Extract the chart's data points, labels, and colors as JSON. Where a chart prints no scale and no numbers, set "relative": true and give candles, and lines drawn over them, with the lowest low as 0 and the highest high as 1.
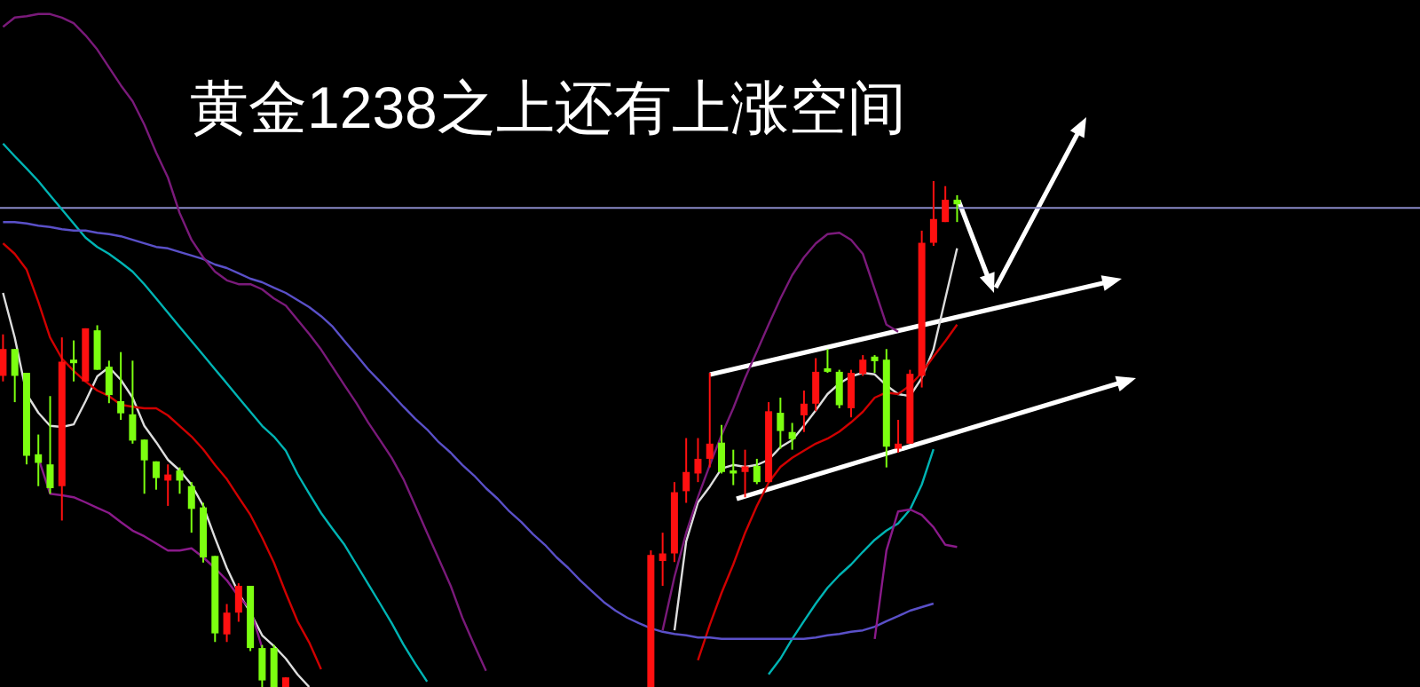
{
  "chart_data": {
    "type": "candlestick",
    "title": "黄金1238之上还有上涨空间",
    "relative": true,
    "categories": [
      null,
      null,
      null,
      null,
      null,
      null,
      null,
      null,
      null,
      null,
      null,
      null,
      null,
      null,
      null,
      null,
      null,
      null,
      null,
      null,
      null,
      null,
      null,
      null,
      null,
      null,
      null,
      null,
      null,
      null,
      null,
      null,
      null,
      null,
      null,
      null,
      null,
      null,
      null,
      null,
      null,
      null,
      null,
      null,
      null,
      null,
      null,
      null,
      null,
      null,
      null,
      null,
      null,
      null,
      null,
      null,
      null,
      null,
      null,
      null,
      null,
      null,
      null,
      null,
      null,
      null,
      null,
      null,
      null,
      null,
      null,
      null,
      null,
      null,
      null,
      null,
      null,
      null,
      null,
      null,
      null,
      null
    ],
    "ohlc": [
      [
        0.615,
        0.697,
        0.604,
        0.668
      ],
      [
        0.668,
        0.668,
        0.563,
        0.615
      ],
      [
        0.621,
        0.621,
        0.44,
        0.457
      ],
      [
        0.46,
        0.499,
        0.397,
        0.443
      ],
      [
        0.44,
        0.575,
        0.382,
        0.393
      ],
      [
        0.397,
        0.691,
        0.329,
        0.643
      ],
      [
        0.647,
        0.685,
        0.604,
        0.64
      ],
      [
        0.604,
        0.709,
        0.604,
        0.709
      ],
      [
        0.705,
        0.715,
        0.627,
        0.627
      ],
      [
        0.633,
        0.645,
        0.561,
        0.577
      ],
      [
        0.565,
        0.662,
        0.528,
        0.541
      ],
      [
        0.539,
        0.645,
        0.481,
        0.487
      ],
      [
        0.489,
        0.489,
        0.382,
        0.448
      ],
      [
        0.446,
        0.446,
        0.39,
        0.413
      ],
      [
        0.408,
        0.44,
        0.358,
        0.42
      ],
      [
        0.428,
        0.434,
        0.382,
        0.408
      ],
      [
        0.397,
        0.405,
        0.305,
        0.352
      ],
      [
        0.355,
        0.364,
        0.246,
        0.256
      ],
      [
        0.259,
        0.259,
        0.089,
        0.106
      ],
      [
        0.104,
        0.164,
        0.089,
        0.147
      ],
      [
        0.147,
        0.205,
        0.129,
        0.2
      ],
      [
        0.2,
        0.2,
        0.071,
        0.077
      ],
      [
        0.077,
        0.083,
        0,
        0.013
      ],
      [
        0.077,
        0.083,
        0,
        0
      ],
      [
        0,
        0.019,
        0,
        0.019
      ],
      null,
      null,
      null,
      null,
      null,
      null,
      null,
      null,
      null,
      null,
      null,
      null,
      null,
      null,
      null,
      null,
      null,
      null,
      null,
      null,
      null,
      null,
      null,
      null,
      null,
      null,
      null,
      null,
      null,
      null,
      [
        0,
        0.27,
        0,
        0.261
      ],
      [
        0.249,
        0.305,
        0.2,
        0.264
      ],
      [
        0.264,
        0.405,
        0.247,
        0.385
      ],
      [
        0.387,
        0.492,
        0.364,
        0.425
      ],
      [
        0.422,
        0.492,
        0.405,
        0.451
      ],
      [
        0.451,
        0.621,
        0.434,
        0.481
      ],
      [
        0.483,
        0.518,
        0.422,
        0.425
      ],
      [
        0.428,
        0.469,
        0.399,
        0.422
      ],
      [
        0.425,
        0.469,
        0.375,
        0.436
      ],
      [
        0.437,
        0.451,
        0.401,
        0.405
      ],
      [
        0.405,
        0.563,
        0.405,
        0.545
      ],
      [
        0.542,
        0.572,
        0.471,
        0.506
      ],
      [
        0.504,
        0.522,
        0.469,
        0.49
      ],
      [
        0.537,
        0.586,
        0.504,
        0.56
      ],
      [
        0.56,
        0.65,
        0.545,
        0.623
      ],
      [
        0.63,
        0.668,
        0.621,
        0.623
      ],
      [
        0.623,
        0.627,
        0.551,
        0.557
      ],
      [
        0.551,
        0.627,
        0.533,
        0.621
      ],
      [
        0.619,
        0.656,
        0.615,
        0.647
      ],
      [
        0.653,
        0.656,
        0.621,
        0.644
      ],
      [
        0.647,
        0.668,
        0.434,
        0.475
      ],
      [
        0.471,
        0.528,
        0.463,
        0.481
      ],
      [
        0.481,
        0.627,
        0.481,
        0.619
      ],
      [
        0.615,
        0.902,
        0.592,
        0.878
      ],
      [
        0.878,
        1.0,
        0.872,
        0.925
      ],
      [
        0.919,
        0.99,
        0.919,
        0.963
      ],
      [
        0.963,
        0.972,
        0.919,
        0.954
      ]
    ],
    "series": [
      {
        "type": "line",
        "color": "#dddddd",
        "values": [
          0.779,
          0.691,
          0.579,
          0.542,
          0.516,
          0.514,
          0.519,
          0.565,
          0.614,
          0.632,
          0.607,
          0.572,
          0.516,
          0.484,
          0.449,
          0.428,
          0.4,
          0.358,
          0.295,
          0.235,
          0.186,
          0.147,
          0.102,
          0.081,
          0.056,
          0.025,
          0,
          null,
          null,
          null,
          null,
          null,
          null,
          null,
          null,
          null,
          null,
          null,
          null,
          null,
          null,
          null,
          null,
          null,
          null,
          null,
          null,
          null,
          null,
          null,
          null,
          null,
          null,
          null,
          null,
          null,
          null,
          0.112,
          0.288,
          0.365,
          0.396,
          0.432,
          0.439,
          0.435,
          0.439,
          0.449,
          0.474,
          0.488,
          0.516,
          0.547,
          0.579,
          0.6,
          0.614,
          0.621,
          0.618,
          0.596,
          0.579,
          0.575,
          0.611,
          0.667,
          0.768,
          0.867
        ]
      },
      {
        "type": "line",
        "color": "#d00000",
        "values": [
          0.877,
          0.856,
          0.825,
          0.761,
          0.691,
          0.649,
          0.625,
          0.604,
          0.586,
          0.575,
          0.558,
          0.554,
          0.551,
          0.551,
          0.537,
          0.516,
          0.495,
          0.47,
          0.439,
          0.411,
          0.375,
          0.34,
          0.295,
          0.246,
          0.186,
          0.13,
          0.088,
          0.035,
          null,
          null,
          null,
          null,
          null,
          null,
          null,
          null,
          null,
          null,
          null,
          null,
          null,
          null,
          null,
          null,
          null,
          null,
          null,
          null,
          null,
          null,
          null,
          null,
          null,
          null,
          null,
          null,
          null,
          null,
          null,
          0.053,
          0.123,
          0.186,
          0.242,
          0.305,
          0.358,
          0.404,
          0.435,
          0.453,
          0.467,
          0.481,
          0.491,
          0.505,
          0.523,
          0.544,
          0.572,
          0.582,
          0.579,
          0.596,
          0.621,
          0.653,
          0.684,
          0.716
        ]
      },
      {
        "type": "line",
        "color": "#00b4b4",
        "values": [
          1.074,
          1.049,
          1.025,
          1.0,
          0.972,
          0.944,
          0.916,
          0.888,
          0.87,
          0.856,
          0.839,
          0.821,
          0.796,
          0.768,
          0.74,
          0.712,
          0.684,
          0.656,
          0.628,
          0.6,
          0.572,
          0.544,
          0.516,
          0.495,
          0.467,
          0.421,
          0.382,
          0.344,
          0.312,
          0.281,
          0.242,
          0.204,
          0.165,
          0.126,
          0.084,
          0.046,
          0.011,
          null,
          null,
          null,
          null,
          null,
          null,
          null,
          null,
          null,
          null,
          null,
          null,
          null,
          null,
          null,
          null,
          null,
          null,
          null,
          null,
          null,
          null,
          null,
          null,
          null,
          null,
          null,
          null,
          0.025,
          0.056,
          0.095,
          0.13,
          0.165,
          0.196,
          0.221,
          0.242,
          0.267,
          0.291,
          0.309,
          0.323,
          0.351,
          0.4,
          0.47,
          null,
          null
        ]
      },
      {
        "type": "line",
        "color": "#5a50c8",
        "values": [
          0.919,
          0.919,
          0.916,
          0.912,
          0.909,
          0.905,
          0.902,
          0.902,
          0.898,
          0.895,
          0.891,
          0.884,
          0.877,
          0.87,
          0.867,
          0.86,
          0.853,
          0.846,
          0.835,
          0.828,
          0.818,
          0.807,
          0.8,
          0.789,
          0.779,
          0.765,
          0.751,
          0.733,
          0.712,
          0.684,
          0.656,
          0.628,
          0.604,
          0.579,
          0.554,
          0.53,
          0.509,
          0.484,
          0.463,
          0.439,
          0.418,
          0.393,
          0.372,
          0.347,
          0.326,
          0.302,
          0.281,
          0.256,
          0.235,
          0.211,
          0.189,
          0.168,
          0.151,
          0.137,
          0.126,
          0.116,
          0.109,
          0.105,
          0.102,
          0.098,
          0.098,
          0.095,
          0.095,
          0.095,
          0.095,
          0.095,
          0.095,
          0.095,
          0.095,
          0.098,
          0.102,
          0.105,
          0.109,
          0.112,
          0.119,
          0.13,
          0.14,
          0.151,
          0.158,
          0.165,
          null,
          null
        ]
      },
      {
        "type": "line",
        "color": "#7a1a7a",
        "values": [
          1.305,
          1.323,
          1.326,
          1.33,
          1.33,
          1.323,
          1.312,
          1.288,
          1.26,
          1.225,
          1.189,
          1.158,
          1.112,
          1.056,
          1.007,
          0.937,
          0.884,
          0.849,
          0.821,
          0.804,
          0.796,
          0.796,
          0.786,
          0.768,
          0.754,
          0.726,
          0.698,
          0.667,
          0.632,
          0.596,
          0.561,
          0.523,
          0.488,
          0.453,
          0.411,
          0.358,
          0.305,
          0.253,
          0.2,
          0.137,
          0.084,
          0.032,
          null,
          null,
          null,
          null,
          null,
          null,
          null,
          null,
          null,
          null,
          null,
          null,
          null,
          null,
          0.112,
          0.218,
          0.305,
          0.375,
          0.439,
          0.498,
          0.551,
          0.611,
          0.663,
          0.716,
          0.768,
          0.814,
          0.849,
          0.877,
          0.895,
          0.898,
          0.884,
          0.856,
          0.786,
          0.716,
          0.702,
          null,
          null,
          null,
          null,
          null
        ]
      },
      {
        "type": "line",
        "color": "#8a1a8a",
        "values": [
          null,
          null,
          null,
          0.453,
          0.382,
          0.379,
          0.375,
          0.365,
          0.354,
          0.344,
          0.326,
          0.309,
          0.298,
          0.284,
          0.27,
          0.27,
          0.274,
          0.256,
          0.235,
          0.211,
          0.179,
          0.154,
          0.077,
          null,
          null,
          null,
          null,
          null,
          null,
          null,
          null,
          null,
          null,
          null,
          null,
          null,
          null,
          null,
          null,
          null,
          null,
          null,
          null,
          null,
          null,
          null,
          null,
          null,
          null,
          null,
          null,
          null,
          null,
          null,
          null,
          null,
          null,
          null,
          null,
          null,
          null,
          null,
          null,
          null,
          null,
          null,
          null,
          null,
          null,
          null,
          null,
          null,
          null,
          null,
          0.095,
          0.27,
          0.347,
          0.351,
          0.34,
          0.316,
          0.281,
          0.277
        ]
      }
    ],
    "ref_lines": [
      {
        "axis": "y",
        "value": 0.947,
        "color": "#8a8ac8"
      }
    ]
  }
}
